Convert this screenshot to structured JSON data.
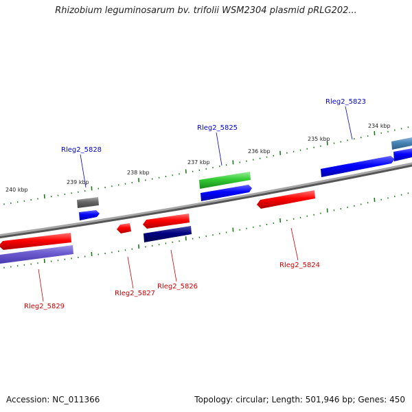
{
  "title": "Rhizobium leguminosarum bv. trifolii WSM2304 plasmid pRLG202...",
  "footer": {
    "accession": "Accession: NC_011366",
    "summary": "Topology: circular; Length: 501,946 bp; Genes: 450"
  },
  "scale_labels": [
    "240 kbp",
    "239 kbp",
    "238 kbp",
    "237 kbp",
    "236 kbp",
    "235 kbp",
    "234 kbp"
  ],
  "gene_labels": [
    {
      "id": "5823",
      "text": "Rleg2_5823",
      "color": "#0000cc"
    },
    {
      "id": "5825",
      "text": "Rleg2_5825",
      "color": "#0000cc"
    },
    {
      "id": "5828",
      "text": "Rleg2_5828",
      "color": "#0000cc"
    },
    {
      "id": "5824",
      "text": "Rleg2_5824",
      "color": "#cc0000"
    },
    {
      "id": "5826",
      "text": "Rleg2_5826",
      "color": "#cc0000"
    },
    {
      "id": "5827",
      "text": "Rleg2_5827",
      "color": "#cc0000"
    },
    {
      "id": "5829",
      "text": "Rleg2_5829",
      "color": "#cc0000"
    }
  ],
  "colors": {
    "forward_cds": "#0000ff",
    "reverse_cds": "#ff0000",
    "rna": "#33cc33",
    "other": "#666666",
    "reverse_dark": "#000080",
    "reverse_light": "#6a5acd",
    "forward_light": "#4682b4",
    "backbone": "#888888",
    "tick": "#1a7a1a"
  }
}
